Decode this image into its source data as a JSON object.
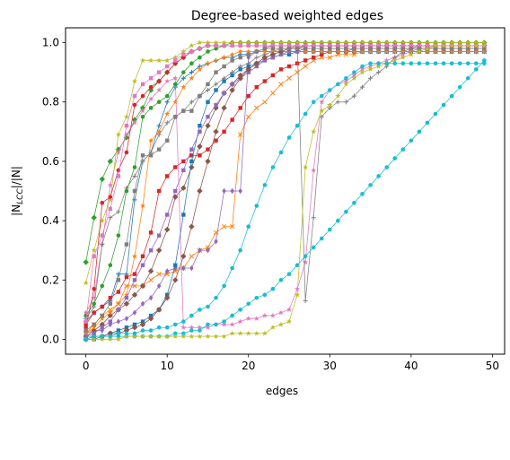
{
  "chart_data": {
    "type": "line",
    "title": "Degree-based weighted edges",
    "xlabel": "edges",
    "ylabel": "|N_LCC|/|N|",
    "ylabel_parts": {
      "pre": "|N",
      "sub": "LCC",
      "post": "|/|N|"
    },
    "xlim": [
      -2.5,
      51.5
    ],
    "ylim": [
      -0.05,
      1.05
    ],
    "xticks": [
      0,
      10,
      20,
      30,
      40,
      50
    ],
    "yticks": [
      0.0,
      0.2,
      0.4,
      0.6,
      0.8,
      1.0
    ],
    "xtick_labels": [
      "0",
      "10",
      "20",
      "30",
      "40",
      "50"
    ],
    "ytick_labels": [
      "0.0",
      "0.2",
      "0.4",
      "0.6",
      "0.8",
      "1.0"
    ],
    "grid": false,
    "legend": "none",
    "x": [
      0,
      1,
      2,
      3,
      4,
      5,
      6,
      7,
      8,
      9,
      10,
      11,
      12,
      13,
      14,
      15,
      16,
      17,
      18,
      19,
      20,
      21,
      22,
      23,
      24,
      25,
      26,
      27,
      28,
      29,
      30,
      31,
      32,
      33,
      34,
      35,
      36,
      37,
      38,
      39,
      40,
      41,
      42,
      43,
      44,
      45,
      46,
      47,
      48,
      49
    ],
    "series": [
      {
        "color": "#1f77b4",
        "marker": "+",
        "values": [
          0.06,
          0.09,
          0.11,
          0.13,
          0.22,
          0.22,
          0.47,
          0.6,
          0.63,
          0.72,
          0.8,
          0.85,
          0.88,
          0.9,
          0.92,
          0.93,
          0.94,
          0.95,
          0.95,
          0.96,
          0.96,
          0.97,
          0.97,
          0.97,
          0.97,
          0.97,
          0.97,
          0.97,
          0.97,
          0.97,
          0.97,
          0.97,
          0.97,
          0.97,
          0.97,
          0.97,
          0.97,
          0.97,
          0.97,
          0.97,
          0.97,
          0.97,
          0.97,
          0.97,
          0.97,
          0.97,
          0.97,
          0.97,
          0.97,
          0.97
        ]
      },
      {
        "color": "#ff7f0e",
        "marker": "x",
        "values": [
          0.02,
          0.05,
          0.08,
          0.1,
          0.12,
          0.18,
          0.18,
          0.18,
          0.2,
          0.22,
          0.22,
          0.23,
          0.24,
          0.28,
          0.3,
          0.31,
          0.36,
          0.38,
          0.38,
          0.69,
          0.75,
          0.78,
          0.8,
          0.83,
          0.86,
          0.88,
          0.9,
          0.92,
          0.94,
          0.95,
          0.95,
          0.96,
          0.96,
          0.96,
          0.97,
          0.97,
          0.97,
          0.97,
          0.97,
          0.97,
          0.97,
          0.97,
          0.97,
          0.97,
          0.97,
          0.97,
          0.97,
          0.97,
          0.97,
          0.97
        ]
      },
      {
        "color": "#2ca02c",
        "marker": "D",
        "values": [
          0.26,
          0.41,
          0.54,
          0.6,
          0.64,
          0.68,
          0.74,
          0.78,
          0.84,
          0.87,
          0.9,
          0.93,
          0.95,
          0.97,
          0.98,
          0.99,
          0.99,
          0.99,
          1.0,
          1.0,
          1.0,
          1.0,
          1.0,
          1.0,
          1.0,
          1.0,
          1.0,
          1.0,
          1.0,
          1.0,
          1.0,
          1.0,
          1.0,
          1.0,
          1.0,
          1.0,
          1.0,
          1.0,
          1.0,
          1.0,
          1.0,
          1.0,
          1.0,
          1.0,
          1.0,
          1.0,
          1.0,
          1.0,
          1.0,
          1.0
        ]
      },
      {
        "color": "#d62728",
        "marker": "s",
        "values": [
          0.05,
          0.09,
          0.11,
          0.14,
          0.16,
          0.21,
          0.22,
          0.28,
          0.36,
          0.5,
          0.55,
          0.58,
          0.6,
          0.62,
          0.62,
          0.64,
          0.67,
          0.7,
          0.74,
          0.78,
          0.82,
          0.85,
          0.87,
          0.89,
          0.91,
          0.92,
          0.93,
          0.94,
          0.95,
          0.96,
          0.97,
          0.97,
          0.97,
          0.98,
          0.98,
          0.98,
          0.98,
          0.98,
          0.98,
          0.98,
          0.98,
          0.98,
          0.98,
          0.98,
          0.98,
          0.98,
          0.98,
          0.98,
          0.98,
          0.98
        ]
      },
      {
        "color": "#9467bd",
        "marker": "d",
        "values": [
          0.02,
          0.03,
          0.03,
          0.05,
          0.06,
          0.07,
          0.09,
          0.12,
          0.14,
          0.18,
          0.23,
          0.24,
          0.24,
          0.24,
          0.3,
          0.3,
          0.33,
          0.5,
          0.5,
          0.5,
          0.95,
          0.97,
          0.98,
          0.99,
          0.99,
          0.99,
          0.99,
          0.99,
          0.99,
          0.99,
          0.99,
          0.99,
          0.99,
          0.99,
          0.99,
          0.99,
          0.99,
          0.99,
          0.99,
          0.99,
          0.99,
          0.99,
          0.99,
          0.99,
          0.99,
          0.99,
          0.99,
          0.99,
          0.99,
          0.99
        ]
      },
      {
        "color": "#8c564b",
        "marker": "D",
        "values": [
          0.01,
          0.03,
          0.05,
          0.08,
          0.1,
          0.12,
          0.15,
          0.18,
          0.23,
          0.3,
          0.37,
          0.48,
          0.51,
          0.58,
          0.65,
          0.72,
          0.78,
          0.83,
          0.86,
          0.89,
          0.91,
          0.93,
          0.95,
          0.96,
          0.97,
          0.98,
          0.98,
          0.99,
          0.99,
          0.99,
          0.99,
          0.99,
          0.99,
          0.99,
          0.99,
          0.99,
          0.99,
          0.99,
          0.99,
          0.99,
          0.99,
          0.99,
          0.99,
          0.99,
          0.99,
          0.99,
          0.99,
          0.99,
          0.99,
          0.99
        ]
      },
      {
        "color": "#e377c2",
        "marker": "*",
        "values": [
          0.09,
          0.14,
          0.32,
          0.52,
          0.63,
          0.69,
          0.73,
          0.77,
          0.81,
          0.84,
          0.87,
          0.88,
          0.04,
          0.04,
          0.04,
          0.04,
          0.05,
          0.05,
          0.05,
          0.06,
          0.07,
          0.07,
          0.08,
          0.08,
          0.09,
          0.1,
          0.17,
          0.26,
          0.57,
          0.8,
          0.84,
          0.86,
          0.87,
          0.89,
          0.91,
          0.92,
          0.93,
          0.94,
          0.95,
          0.96,
          0.97,
          0.98,
          0.98,
          0.99,
          0.99,
          0.99,
          0.99,
          0.99,
          0.99,
          0.99
        ]
      },
      {
        "color": "#7f7f7f",
        "marker": "+",
        "values": [
          0.07,
          0.11,
          0.32,
          0.41,
          0.43,
          0.51,
          0.55,
          0.6,
          0.63,
          0.69,
          0.73,
          0.75,
          0.77,
          0.8,
          0.82,
          0.84,
          0.86,
          0.88,
          0.9,
          0.92,
          0.93,
          0.95,
          0.96,
          0.97,
          0.98,
          0.98,
          0.99,
          0.13,
          0.41,
          0.75,
          0.78,
          0.8,
          0.8,
          0.82,
          0.85,
          0.88,
          0.9,
          0.92,
          0.95,
          0.97,
          0.98,
          0.99,
          0.99,
          0.99,
          0.99,
          0.99,
          0.99,
          0.99,
          0.99,
          0.99
        ]
      },
      {
        "color": "#bcbd22",
        "marker": "*",
        "values": [
          0.19,
          0.3,
          0.4,
          0.47,
          0.69,
          0.75,
          0.87,
          0.94,
          0.94,
          0.94,
          0.94,
          0.95,
          0.97,
          0.99,
          1.0,
          1.0,
          1.0,
          1.0,
          1.0,
          1.0,
          1.0,
          1.0,
          1.0,
          1.0,
          1.0,
          1.0,
          1.0,
          1.0,
          1.0,
          1.0,
          1.0,
          1.0,
          1.0,
          1.0,
          1.0,
          1.0,
          1.0,
          1.0,
          1.0,
          1.0,
          1.0,
          1.0,
          1.0,
          1.0,
          1.0,
          1.0,
          1.0,
          1.0,
          1.0,
          1.0
        ]
      },
      {
        "color": "#17becf",
        "marker": "o",
        "values": [
          0.01,
          0.01,
          0.01,
          0.01,
          0.01,
          0.01,
          0.01,
          0.01,
          0.01,
          0.01,
          0.01,
          0.02,
          0.02,
          0.03,
          0.03,
          0.05,
          0.05,
          0.06,
          0.08,
          0.1,
          0.12,
          0.14,
          0.15,
          0.17,
          0.2,
          0.22,
          0.25,
          0.28,
          0.31,
          0.34,
          0.37,
          0.4,
          0.43,
          0.46,
          0.49,
          0.52,
          0.55,
          0.58,
          0.61,
          0.64,
          0.67,
          0.7,
          0.73,
          0.76,
          0.79,
          0.82,
          0.85,
          0.88,
          0.91,
          0.94
        ]
      },
      {
        "color": "#1f77b4",
        "marker": "s",
        "values": [
          0.0,
          0.0,
          0.01,
          0.02,
          0.03,
          0.04,
          0.05,
          0.06,
          0.08,
          0.1,
          0.15,
          0.25,
          0.42,
          0.6,
          0.72,
          0.8,
          0.84,
          0.87,
          0.89,
          0.91,
          0.92,
          0.93,
          0.94,
          0.95,
          0.96,
          0.96,
          0.97,
          0.97,
          0.97,
          0.97,
          0.97,
          0.97,
          0.97,
          0.97,
          0.97,
          0.97,
          0.97,
          0.97,
          0.97,
          0.97,
          0.97,
          0.97,
          0.97,
          0.97,
          0.97,
          0.97,
          0.97,
          0.97,
          0.97,
          0.97
        ]
      },
      {
        "color": "#ff7f0e",
        "marker": "*",
        "values": [
          0.02,
          0.04,
          0.07,
          0.09,
          0.12,
          0.15,
          0.28,
          0.45,
          0.67,
          0.7,
          0.76,
          0.8,
          0.85,
          0.88,
          0.91,
          0.93,
          0.94,
          0.95,
          0.96,
          0.97,
          0.97,
          0.97,
          0.97,
          0.97,
          0.97,
          0.97,
          0.97,
          0.97,
          0.97,
          0.97,
          0.97,
          0.97,
          0.97,
          0.97,
          0.97,
          0.97,
          0.97,
          0.97,
          0.97,
          0.97,
          0.97,
          0.97,
          0.97,
          0.97,
          0.97,
          0.97,
          0.97,
          0.97,
          0.97,
          0.97
        ]
      },
      {
        "color": "#2ca02c",
        "marker": "o",
        "values": [
          0.08,
          0.12,
          0.18,
          0.25,
          0.35,
          0.5,
          0.58,
          0.75,
          0.78,
          0.8,
          0.82,
          0.86,
          0.9,
          0.93,
          0.95,
          0.97,
          0.98,
          0.99,
          0.99,
          0.99,
          0.99,
          0.99,
          0.99,
          0.99,
          0.99,
          0.99,
          0.99,
          0.99,
          0.99,
          0.99,
          0.99,
          0.99,
          0.99,
          0.99,
          0.99,
          0.99,
          0.99,
          0.99,
          0.99,
          0.99,
          0.99,
          0.99,
          0.99,
          0.99,
          0.99,
          0.99,
          0.99,
          0.99,
          0.99,
          0.99
        ]
      },
      {
        "color": "#d62728",
        "marker": "o",
        "values": [
          0.04,
          0.17,
          0.46,
          0.48,
          0.57,
          0.63,
          0.79,
          0.82,
          0.85,
          0.87,
          0.9,
          0.93,
          0.95,
          0.97,
          0.98,
          0.99,
          0.99,
          0.99,
          0.99,
          0.99,
          0.99,
          0.99,
          0.99,
          0.99,
          0.99,
          0.99,
          0.99,
          0.99,
          0.99,
          0.99,
          0.99,
          0.99,
          0.99,
          0.99,
          0.99,
          0.99,
          0.99,
          0.99,
          0.99,
          0.99,
          0.99,
          0.99,
          0.99,
          0.99,
          0.99,
          0.99,
          0.99,
          0.99,
          0.99,
          0.99
        ]
      },
      {
        "color": "#9467bd",
        "marker": "s",
        "values": [
          0.01,
          0.02,
          0.04,
          0.06,
          0.1,
          0.14,
          0.2,
          0.25,
          0.3,
          0.35,
          0.42,
          0.5,
          0.57,
          0.64,
          0.7,
          0.75,
          0.79,
          0.83,
          0.86,
          0.88,
          0.9,
          0.92,
          0.94,
          0.95,
          0.96,
          0.97,
          0.97,
          0.98,
          0.98,
          0.98,
          0.98,
          0.98,
          0.98,
          0.98,
          0.98,
          0.98,
          0.98,
          0.98,
          0.98,
          0.98,
          0.98,
          0.98,
          0.98,
          0.98,
          0.98,
          0.98,
          0.98,
          0.98,
          0.98,
          0.98
        ]
      },
      {
        "color": "#8c564b",
        "marker": "D",
        "values": [
          0.0,
          0.01,
          0.01,
          0.02,
          0.02,
          0.03,
          0.04,
          0.05,
          0.07,
          0.1,
          0.14,
          0.2,
          0.28,
          0.38,
          0.5,
          0.6,
          0.7,
          0.78,
          0.84,
          0.88,
          0.91,
          0.93,
          0.95,
          0.96,
          0.97,
          0.98,
          0.98,
          0.99,
          0.99,
          0.99,
          0.99,
          0.99,
          0.99,
          0.99,
          0.99,
          0.99,
          0.99,
          0.99,
          0.99,
          0.99,
          0.99,
          0.99,
          0.99,
          0.99,
          0.99,
          0.99,
          0.99,
          0.99,
          0.99,
          0.99
        ]
      },
      {
        "color": "#e377c2",
        "marker": "s",
        "values": [
          0.06,
          0.28,
          0.35,
          0.44,
          0.55,
          0.72,
          0.82,
          0.86,
          0.88,
          0.9,
          0.92,
          0.94,
          0.96,
          0.97,
          0.98,
          0.99,
          0.99,
          0.99,
          0.99,
          0.99,
          0.99,
          0.99,
          0.99,
          0.99,
          0.99,
          0.99,
          0.99,
          0.99,
          0.99,
          0.99,
          0.99,
          0.99,
          0.99,
          0.99,
          0.99,
          0.99,
          0.99,
          0.99,
          0.99,
          0.99,
          0.99,
          0.99,
          0.99,
          0.99,
          0.99,
          0.99,
          0.99,
          0.99,
          0.99,
          0.99
        ]
      },
      {
        "color": "#7f7f7f",
        "marker": "s",
        "values": [
          0.03,
          0.05,
          0.08,
          0.12,
          0.2,
          0.32,
          0.5,
          0.62,
          0.62,
          0.64,
          0.67,
          0.75,
          0.77,
          0.77,
          0.82,
          0.86,
          0.9,
          0.92,
          0.94,
          0.95,
          0.96,
          0.97,
          0.98,
          0.98,
          0.98,
          0.98,
          0.98,
          0.98,
          0.98,
          0.98,
          0.98,
          0.98,
          0.98,
          0.98,
          0.98,
          0.98,
          0.98,
          0.98,
          0.98,
          0.98,
          0.98,
          0.98,
          0.98,
          0.98,
          0.98,
          0.98,
          0.98,
          0.98,
          0.98,
          0.98
        ]
      },
      {
        "color": "#bcbd22",
        "marker": "*",
        "values": [
          0.0,
          0.0,
          0.0,
          0.0,
          0.0,
          0.01,
          0.01,
          0.01,
          0.01,
          0.01,
          0.01,
          0.01,
          0.01,
          0.01,
          0.01,
          0.01,
          0.01,
          0.01,
          0.02,
          0.02,
          0.02,
          0.02,
          0.02,
          0.04,
          0.05,
          0.06,
          0.15,
          0.58,
          0.7,
          0.77,
          0.79,
          0.82,
          0.86,
          0.88,
          0.9,
          0.91,
          0.92,
          0.93,
          0.94,
          0.95,
          0.96,
          0.97,
          0.98,
          0.99,
          0.99,
          0.99,
          0.99,
          0.99,
          0.99,
          0.99
        ]
      },
      {
        "color": "#17becf",
        "marker": "o",
        "values": [
          0.0,
          0.01,
          0.01,
          0.01,
          0.02,
          0.02,
          0.02,
          0.03,
          0.03,
          0.04,
          0.04,
          0.05,
          0.06,
          0.08,
          0.1,
          0.11,
          0.14,
          0.18,
          0.24,
          0.3,
          0.38,
          0.45,
          0.52,
          0.58,
          0.63,
          0.68,
          0.72,
          0.76,
          0.8,
          0.82,
          0.84,
          0.86,
          0.88,
          0.9,
          0.92,
          0.93,
          0.93,
          0.93,
          0.93,
          0.93,
          0.93,
          0.93,
          0.93,
          0.93,
          0.93,
          0.93,
          0.93,
          0.93,
          0.93,
          0.93
        ]
      }
    ]
  }
}
